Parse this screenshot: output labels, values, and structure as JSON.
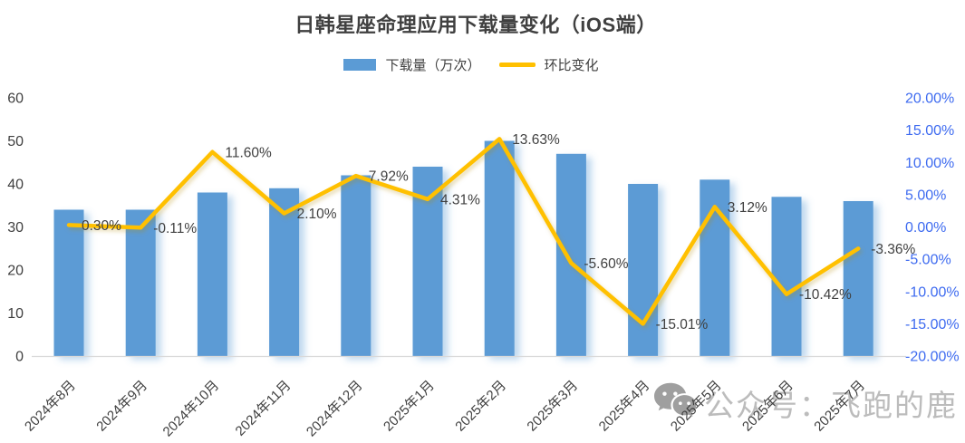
{
  "title": "日韩星座命理应用下载量变化（iOS端）",
  "legend": {
    "bar_label": "下载量（万次）",
    "line_label": "环比变化"
  },
  "watermark": {
    "icon": "wechat-icon",
    "text": "公众号：飞跑的鹿"
  },
  "colors": {
    "bar": "#5B9BD5",
    "line": "#FFC000",
    "axis_text": "#404040",
    "secondary_axis_text": "#3E6BF0",
    "data_label_text": "#404040",
    "baseline": "#D9D9D9",
    "watermark_icon": "#9f9f9f",
    "watermark_text": "#bcbcbc"
  },
  "chart_data": {
    "type": "bar",
    "subtype": "combo-bar-line",
    "title": "日韩星座命理应用下载量变化（iOS端）",
    "categories": [
      "2024年8月",
      "2024年9月",
      "2024年10月",
      "2024年11月",
      "2024年12月",
      "2025年1月",
      "2025年2月",
      "2025年3月",
      "2025年4月",
      "2025年5月",
      "2025年6月",
      "2025年7月"
    ],
    "series": [
      {
        "name": "下载量（万次）",
        "type": "bar",
        "axis": "left",
        "values": [
          34,
          34,
          38,
          39,
          42,
          44,
          50,
          47,
          40,
          41,
          37,
          36
        ]
      },
      {
        "name": "环比变化",
        "type": "line",
        "axis": "right",
        "values": [
          0.3,
          -0.11,
          11.6,
          2.1,
          7.92,
          4.31,
          13.63,
          -5.6,
          -15.01,
          3.12,
          -10.42,
          -3.36
        ],
        "labels": [
          "0.30%",
          "-0.11%",
          "11.60%",
          "2.10%",
          "7.92%",
          "4.31%",
          "13.63%",
          "-5.60%",
          "-15.01%",
          "3.12%",
          "-10.42%",
          "-3.36%"
        ]
      }
    ],
    "left_axis": {
      "ticks": [
        60,
        50,
        40,
        30,
        20,
        10,
        0
      ],
      "range": [
        0,
        60
      ]
    },
    "right_axis": {
      "ticks": [
        "20.00%",
        "15.00%",
        "10.00%",
        "5.00%",
        "0.00%",
        "-5.00%",
        "-10.00%",
        "-15.00%",
        "-20.00%"
      ],
      "range": [
        -20,
        20
      ]
    },
    "grid": false,
    "legend_position": "top"
  }
}
